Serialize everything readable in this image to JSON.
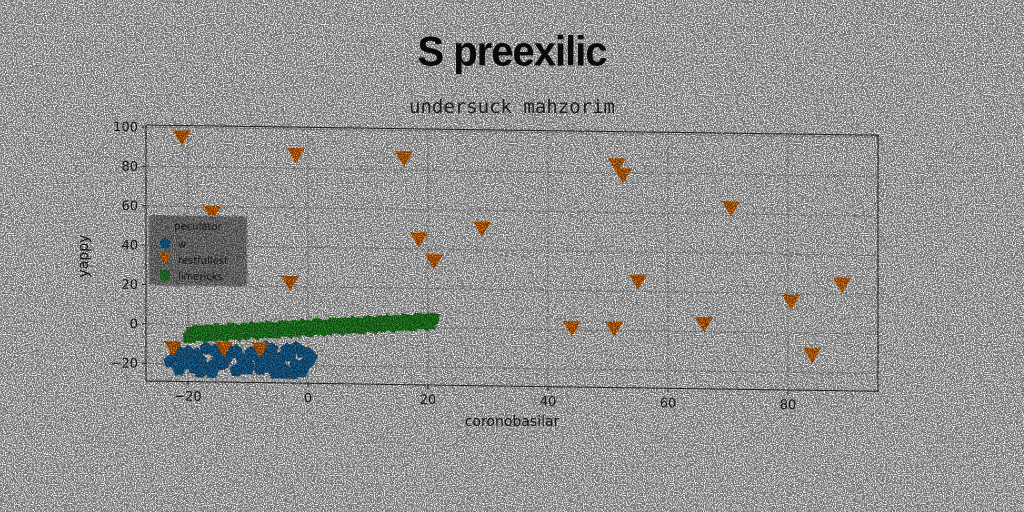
{
  "title": "S preexilic",
  "chart_data": {
    "type": "scatter",
    "title": "undersuck mahzorim",
    "xlabel": "coronobasilar",
    "ylabel": "yappy",
    "xlim": [
      -27,
      95
    ],
    "ylim": [
      -29,
      101
    ],
    "xticks": [
      -20,
      0,
      20,
      40,
      60,
      80
    ],
    "yticks": [
      -20,
      0,
      20,
      40,
      60,
      80,
      100
    ],
    "grid": true,
    "legend": {
      "title": "peculator",
      "position": "center-left"
    },
    "series": [
      {
        "name": "w",
        "marker": "pentagon",
        "color": "#1f77b4",
        "x": [
          -22,
          -21,
          -20,
          -19,
          -18,
          -17,
          -16,
          -15,
          -14,
          -13,
          -12,
          -11,
          -10,
          -9,
          -8,
          -7,
          -6,
          -5,
          -4,
          -3,
          -2,
          -1,
          0,
          -21.5,
          -19.5,
          -17.5,
          -15.5,
          -13.5,
          -11.5,
          -9.5,
          -7.5,
          -5.5,
          -3.5,
          -1.5,
          0.5,
          -20.5,
          -18.5,
          -16.5,
          -14.5,
          -12.5,
          -10.5,
          -8.5,
          -6.5,
          -4.5,
          -2.5,
          -0.5,
          -22,
          -18,
          -14,
          -10,
          -6,
          -2,
          -20,
          -16,
          -12,
          -8,
          -4,
          0,
          -23,
          -15,
          -7,
          -1,
          -3,
          -9
        ],
        "y": [
          -16,
          -20,
          -14,
          -22,
          -18,
          -12,
          -21,
          -15,
          -19,
          -13,
          -23,
          -17,
          -20,
          -14,
          -22,
          -16,
          -12,
          -19,
          -24,
          -15,
          -20,
          -13,
          -18,
          -23,
          -17,
          -21,
          -13,
          -16,
          -22,
          -14,
          -19,
          -24,
          -12,
          -21,
          -16,
          -18,
          -15,
          -23,
          -20,
          -14,
          -18,
          -13,
          -21,
          -16,
          -24,
          -19,
          -13,
          -24,
          -17,
          -22,
          -15,
          -11,
          -20,
          -24,
          -13,
          -18,
          -22,
          -14,
          -19,
          -18,
          -11,
          -23,
          -13,
          -15
        ]
      },
      {
        "name": "restfullest",
        "marker": "triangle-down",
        "color": "#ff7f0e",
        "x": [
          -21,
          -2,
          16,
          -16,
          18.5,
          29,
          51.5,
          52.5,
          70.5,
          -3,
          21,
          55,
          44,
          51,
          66,
          80.5,
          89,
          84,
          -22.5,
          -14,
          -8
        ],
        "y": [
          95,
          87,
          86,
          57,
          45,
          51,
          84,
          79,
          63,
          22,
          34,
          25,
          1,
          1,
          4,
          16,
          25,
          -11,
          -12,
          -12,
          -12
        ]
      },
      {
        "name": "limericks",
        "marker": "square",
        "color": "#2ca02c",
        "x_range": [
          -20,
          21
        ],
        "y_start": -5,
        "y_end": 3.5,
        "n_points": 160
      }
    ]
  }
}
